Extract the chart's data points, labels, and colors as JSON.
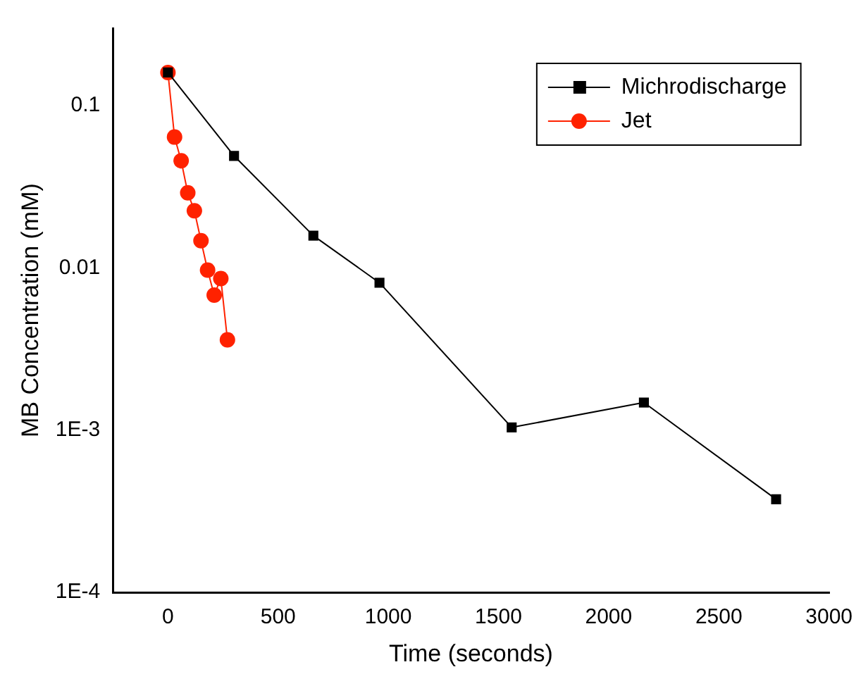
{
  "chart_data": {
    "type": "line",
    "xlabel": "Time (seconds)",
    "ylabel": "MB Concentration (mM)",
    "log": "y",
    "xlim": [
      -250,
      3000
    ],
    "xticks": [
      0,
      500,
      1000,
      1500,
      2000,
      2500,
      3000
    ],
    "ylim": [
      0.0001,
      0.3
    ],
    "yticks": [
      {
        "value": 0.1,
        "label": "0.1"
      },
      {
        "value": 0.01,
        "label": "0.01"
      },
      {
        "value": 0.001,
        "label": "1E-3"
      },
      {
        "value": 0.0001,
        "label": "1E-4"
      }
    ],
    "grid": false,
    "legend": "top right",
    "series": [
      {
        "name": "Michrodischarge",
        "color": "#000000",
        "marker": "square",
        "x": [
          0,
          300,
          660,
          960,
          1560,
          2160,
          2760
        ],
        "values": [
          0.16,
          0.049,
          0.0158,
          0.0081,
          0.00104,
          0.00148,
          0.000375
        ]
      },
      {
        "name": "Jet",
        "color": "#ff2200",
        "marker": "circle",
        "x": [
          0,
          30,
          60,
          90,
          120,
          150,
          180,
          210,
          240,
          270
        ],
        "values": [
          0.16,
          0.064,
          0.0457,
          0.029,
          0.0225,
          0.0147,
          0.0097,
          0.0068,
          0.0086,
          0.0036
        ]
      }
    ]
  }
}
